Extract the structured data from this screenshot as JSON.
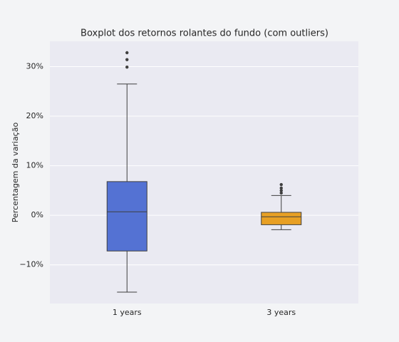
{
  "chart_data": {
    "type": "box",
    "title": "Boxplot dos retornos rolantes do fundo (com outliers)",
    "ylabel": "Percentagem da variação",
    "categories": [
      "1 years",
      "3 years"
    ],
    "boxes": [
      {
        "whislo": -15.5,
        "q1": -7.2,
        "median": 0.7,
        "q3": 6.8,
        "whishi": 26.5,
        "fliers": [
          32.8,
          31.4,
          29.9
        ],
        "color": "#5472d3"
      },
      {
        "whislo": -2.9,
        "q1": -1.9,
        "median": -0.3,
        "q3": 0.6,
        "whishi": 4.0,
        "fliers": [
          6.2,
          5.5,
          5.0,
          4.5
        ],
        "color": "#e8a024"
      }
    ],
    "ylim": [
      -17.8,
      35.1
    ],
    "yticks": [
      {
        "value": -10,
        "label": "−10%"
      },
      {
        "value": 0,
        "label": "0%"
      },
      {
        "value": 10,
        "label": "10%"
      },
      {
        "value": 20,
        "label": "20%"
      },
      {
        "value": 30,
        "label": "30%"
      }
    ],
    "grid": true
  }
}
